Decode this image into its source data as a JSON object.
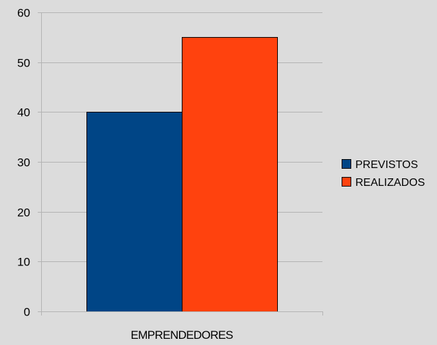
{
  "chart_data": {
    "type": "bar",
    "categories": [
      "EMPRENDEDORES"
    ],
    "series": [
      {
        "name": "PREVISTOS",
        "values": [
          40
        ],
        "color": "#004586"
      },
      {
        "name": "REALIZADOS",
        "values": [
          55
        ],
        "color": "#ff420e"
      }
    ],
    "title": "",
    "xlabel": "",
    "ylabel": "",
    "ylim": [
      0,
      60
    ],
    "yticks": [
      0,
      10,
      20,
      30,
      40,
      50,
      60
    ],
    "grid": true,
    "legend_position": "right"
  },
  "colors": {
    "background": "#dcdcdc",
    "gridline": "#b3b3b3",
    "bar_outline": "#000000"
  }
}
